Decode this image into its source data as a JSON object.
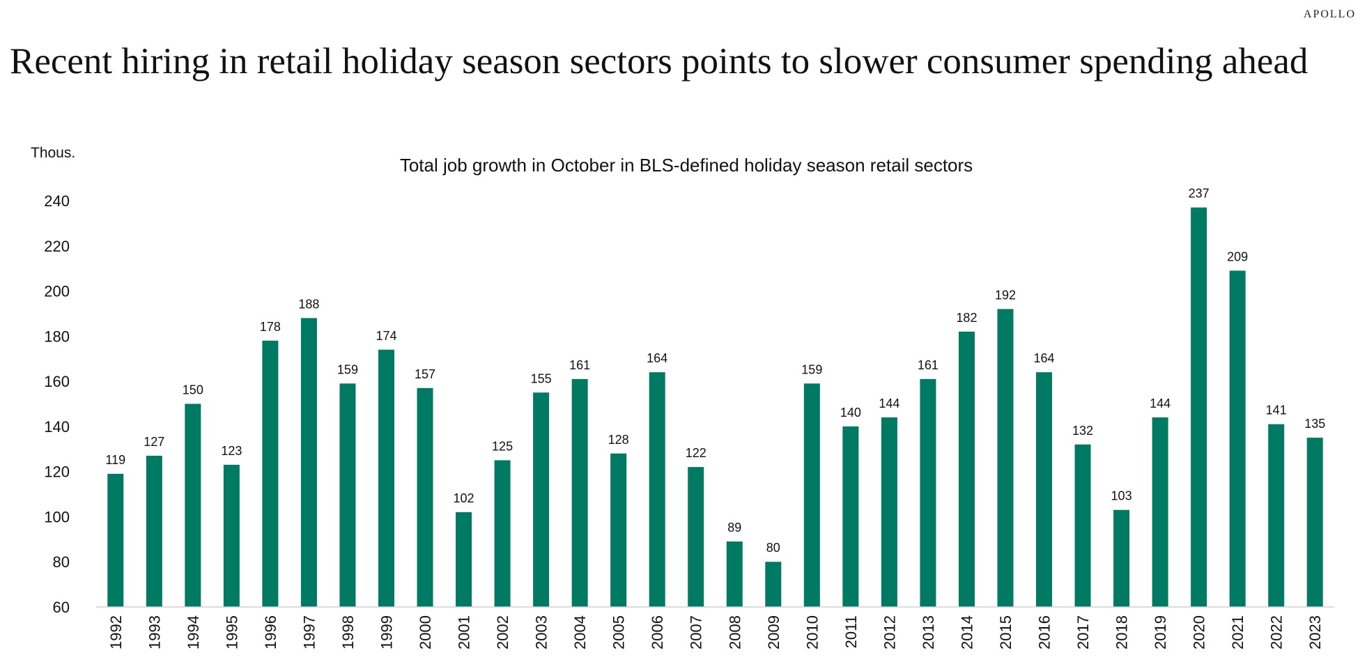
{
  "brand": "APOLLO",
  "headline": "Recent hiring in retail holiday season sectors points to slower consumer spending ahead",
  "colors": {
    "bar": "#007a63",
    "text": "#111111",
    "axis": "#d0d0d0"
  },
  "chart_data": {
    "type": "bar",
    "title": "Total job growth in October in BLS-defined holiday season retail sectors",
    "ylabel": "Thous.",
    "xlabel": "",
    "ylim": [
      60,
      240
    ],
    "yticks": [
      60,
      80,
      100,
      120,
      140,
      160,
      180,
      200,
      220,
      240
    ],
    "grid": false,
    "categories": [
      "1992",
      "1993",
      "1994",
      "1995",
      "1996",
      "1997",
      "1998",
      "1999",
      "2000",
      "2001",
      "2002",
      "2003",
      "2004",
      "2005",
      "2006",
      "2007",
      "2008",
      "2009",
      "2010",
      "2011",
      "2012",
      "2013",
      "2014",
      "2015",
      "2016",
      "2017",
      "2018",
      "2019",
      "2020",
      "2021",
      "2022",
      "2023"
    ],
    "values": [
      119,
      127,
      150,
      123,
      178,
      188,
      159,
      174,
      157,
      102,
      125,
      155,
      161,
      128,
      164,
      122,
      89,
      80,
      159,
      140,
      144,
      161,
      182,
      192,
      164,
      132,
      103,
      144,
      237,
      209,
      141,
      135
    ],
    "data_labels": true
  }
}
